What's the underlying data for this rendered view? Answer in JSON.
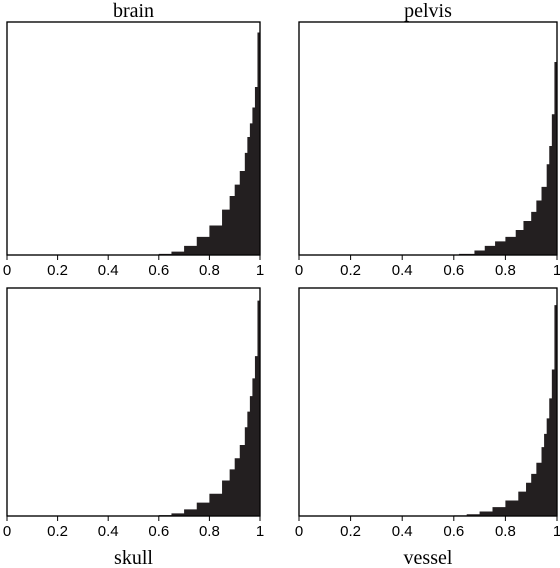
{
  "chart_data": [
    {
      "type": "area",
      "title": "brain",
      "xlim": [
        0,
        1
      ],
      "xticks": [
        "0",
        "0.2",
        "0.4",
        "0.6",
        "0.8",
        "1"
      ],
      "x": [
        0.55,
        0.6,
        0.65,
        0.7,
        0.75,
        0.8,
        0.85,
        0.88,
        0.9,
        0.92,
        0.94,
        0.95,
        0.96,
        0.97,
        0.98,
        0.99,
        1.0
      ],
      "values": [
        0.0,
        0.005,
        0.015,
        0.04,
        0.08,
        0.13,
        0.2,
        0.26,
        0.31,
        0.37,
        0.45,
        0.52,
        0.58,
        0.65,
        0.74,
        0.98,
        1.0
      ]
    },
    {
      "type": "area",
      "title": "pelvis",
      "xlim": [
        0,
        1
      ],
      "xticks": [
        "0",
        "0.2",
        "0.4",
        "0.6",
        "0.8",
        "1"
      ],
      "x": [
        0.55,
        0.62,
        0.68,
        0.72,
        0.76,
        0.8,
        0.84,
        0.87,
        0.9,
        0.92,
        0.94,
        0.96,
        0.97,
        0.98,
        0.99,
        1.0
      ],
      "values": [
        0.0,
        0.005,
        0.02,
        0.04,
        0.06,
        0.08,
        0.11,
        0.15,
        0.19,
        0.24,
        0.3,
        0.4,
        0.48,
        0.62,
        0.85,
        1.0
      ]
    },
    {
      "type": "area",
      "title": "skull",
      "xlim": [
        0,
        1
      ],
      "xticks": [
        "0",
        "0.2",
        "0.4",
        "0.6",
        "0.8",
        "1"
      ],
      "x": [
        0.55,
        0.6,
        0.65,
        0.7,
        0.75,
        0.8,
        0.85,
        0.88,
        0.9,
        0.92,
        0.94,
        0.95,
        0.96,
        0.97,
        0.98,
        0.99,
        1.0
      ],
      "values": [
        0.0,
        0.004,
        0.012,
        0.03,
        0.06,
        0.1,
        0.16,
        0.21,
        0.26,
        0.32,
        0.4,
        0.47,
        0.54,
        0.62,
        0.72,
        0.97,
        1.0
      ]
    },
    {
      "type": "area",
      "title": "vessel",
      "xlim": [
        0,
        1
      ],
      "xticks": [
        "0",
        "0.2",
        "0.4",
        "0.6",
        "0.8",
        "1"
      ],
      "x": [
        0.55,
        0.6,
        0.65,
        0.7,
        0.75,
        0.8,
        0.85,
        0.88,
        0.9,
        0.92,
        0.94,
        0.95,
        0.96,
        0.97,
        0.98,
        0.99,
        1.0
      ],
      "values": [
        0.0,
        0.003,
        0.008,
        0.02,
        0.04,
        0.07,
        0.11,
        0.15,
        0.19,
        0.24,
        0.31,
        0.37,
        0.44,
        0.53,
        0.66,
        0.95,
        1.0
      ]
    }
  ],
  "colors": {
    "fill": "#231f20",
    "frame": "#000000"
  }
}
